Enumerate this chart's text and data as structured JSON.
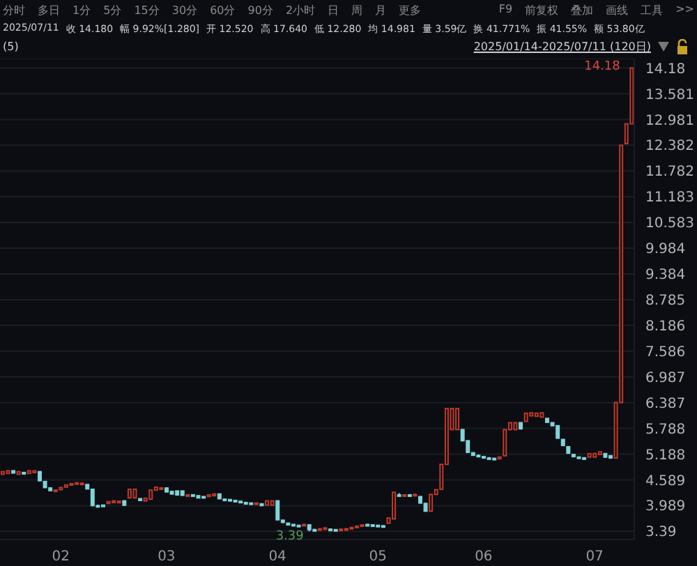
{
  "chart_data": {
    "type": "candlestick",
    "annotations": [
      "分时",
      "多日",
      "1分",
      "5分",
      "15分",
      "30分",
      "60分",
      "90分",
      "2小时",
      "日",
      "周",
      "月",
      "更多",
      "F9",
      "前复权",
      "叠加",
      "画线",
      "工具",
      ">>",
      "2025/07/11",
      "收 14.180",
      "幅 9.92%[1.280]",
      "开 12.520",
      "高 17.640",
      "低 12.280",
      "均 14.981",
      "量 3.59亿",
      "换 41.771%",
      "振 41.55%",
      "额 53.80亿",
      "(5)",
      "2025/01/14-2025/07/11 (120日)",
      "14.18",
      "3.39"
    ],
    "categories": [
      null,
      null,
      null,
      null,
      null,
      null,
      null,
      null,
      null,
      null,
      null,
      "02",
      null,
      null,
      null,
      null,
      null,
      null,
      null,
      null,
      null,
      null,
      null,
      null,
      null,
      null,
      null,
      null,
      null,
      null,
      null,
      "03",
      null,
      null,
      null,
      null,
      null,
      null,
      null,
      null,
      null,
      null,
      null,
      null,
      null,
      null,
      null,
      null,
      null,
      null,
      null,
      null,
      "04",
      null,
      null,
      null,
      null,
      null,
      null,
      null,
      null,
      null,
      null,
      null,
      null,
      null,
      null,
      null,
      null,
      null,
      null,
      "05",
      null,
      null,
      null,
      null,
      null,
      null,
      null,
      null,
      null,
      null,
      null,
      null,
      null,
      null,
      null,
      null,
      null,
      null,
      null,
      "06",
      null,
      null,
      null,
      null,
      null,
      null,
      null,
      null,
      null,
      null,
      null,
      null,
      null,
      null,
      null,
      null,
      null,
      null,
      null,
      null,
      "07",
      null,
      null,
      null,
      null,
      null,
      null,
      null
    ],
    "ohlc": [
      [
        4.72,
        4.78,
        4.72,
        4.78
      ],
      [
        4.74,
        4.8,
        4.74,
        4.8
      ],
      [
        4.8,
        4.8,
        4.74,
        4.75
      ],
      [
        4.72,
        4.78,
        4.72,
        4.78
      ],
      [
        4.76,
        4.76,
        4.72,
        4.73
      ],
      [
        4.74,
        4.8,
        4.74,
        4.8
      ],
      [
        4.76,
        4.8,
        4.76,
        4.8
      ],
      [
        4.78,
        4.78,
        4.56,
        4.57
      ],
      [
        4.55,
        4.55,
        4.4,
        4.41
      ],
      [
        4.4,
        4.4,
        4.33,
        4.34
      ],
      [
        4.34,
        4.36,
        4.33,
        4.35
      ],
      [
        4.36,
        4.41,
        4.36,
        4.41
      ],
      [
        4.42,
        4.47,
        4.42,
        4.47
      ],
      [
        4.47,
        4.5,
        4.47,
        4.5
      ],
      [
        4.5,
        4.52,
        4.5,
        4.52
      ],
      [
        4.51,
        4.52,
        4.5,
        4.51
      ],
      [
        4.48,
        4.48,
        4.38,
        4.38
      ],
      [
        4.37,
        4.37,
        3.98,
        3.99
      ],
      [
        3.99,
        4.01,
        3.97,
        3.98
      ],
      [
        4.0,
        4.01,
        3.97,
        3.98
      ],
      [
        4.04,
        4.08,
        4.04,
        4.08
      ],
      [
        4.06,
        4.1,
        4.06,
        4.1
      ],
      [
        4.08,
        4.1,
        4.08,
        4.09
      ],
      [
        4.1,
        4.1,
        3.98,
        4.0
      ],
      [
        4.17,
        4.37,
        4.17,
        4.37
      ],
      [
        4.17,
        4.37,
        4.17,
        4.37
      ],
      [
        4.15,
        4.15,
        4.1,
        4.11
      ],
      [
        4.1,
        4.16,
        4.1,
        4.16
      ],
      [
        4.14,
        4.35,
        4.14,
        4.35
      ],
      [
        4.35,
        4.42,
        4.35,
        4.42
      ],
      [
        4.38,
        4.42,
        4.38,
        4.4
      ],
      [
        4.4,
        4.4,
        4.3,
        4.31
      ],
      [
        4.32,
        4.33,
        4.25,
        4.26
      ],
      [
        4.33,
        4.33,
        4.22,
        4.24
      ],
      [
        4.33,
        4.33,
        4.22,
        4.23
      ],
      [
        4.22,
        4.25,
        4.2,
        4.24
      ],
      [
        4.24,
        4.25,
        4.2,
        4.21
      ],
      [
        4.22,
        4.22,
        4.16,
        4.17
      ],
      [
        4.2,
        4.2,
        4.16,
        4.17
      ],
      [
        4.2,
        4.24,
        4.2,
        4.24
      ],
      [
        4.22,
        4.26,
        4.22,
        4.26
      ],
      [
        4.26,
        4.26,
        4.14,
        4.15
      ],
      [
        4.14,
        4.14,
        4.12,
        4.13
      ],
      [
        4.13,
        4.13,
        4.1,
        4.11
      ],
      [
        4.11,
        4.11,
        4.08,
        4.09
      ],
      [
        4.09,
        4.09,
        4.05,
        4.06
      ],
      [
        4.06,
        4.08,
        4.04,
        4.05
      ],
      [
        4.05,
        4.06,
        4.02,
        4.03
      ],
      [
        4.02,
        4.06,
        4.02,
        4.05
      ],
      [
        4.03,
        4.03,
        3.98,
        3.99
      ],
      [
        4.0,
        4.1,
        4.0,
        4.1
      ],
      [
        4.0,
        4.1,
        4.0,
        4.1
      ],
      [
        4.1,
        4.1,
        3.65,
        3.66
      ],
      [
        3.65,
        3.65,
        3.58,
        3.6
      ],
      [
        3.58,
        3.58,
        3.53,
        3.54
      ],
      [
        3.55,
        3.56,
        3.52,
        3.53
      ],
      [
        3.53,
        3.54,
        3.5,
        3.51
      ],
      [
        3.52,
        3.56,
        3.52,
        3.55
      ],
      [
        3.54,
        3.54,
        3.39,
        3.43
      ],
      [
        3.43,
        3.45,
        3.41,
        3.42
      ],
      [
        3.42,
        3.45,
        3.42,
        3.45
      ],
      [
        3.45,
        3.48,
        3.45,
        3.47
      ],
      [
        3.44,
        3.46,
        3.42,
        3.43
      ],
      [
        3.43,
        3.44,
        3.41,
        3.42
      ],
      [
        3.42,
        3.45,
        3.42,
        3.44
      ],
      [
        3.44,
        3.46,
        3.43,
        3.45
      ],
      [
        3.45,
        3.48,
        3.45,
        3.48
      ],
      [
        3.48,
        3.52,
        3.48,
        3.51
      ],
      [
        3.51,
        3.55,
        3.51,
        3.54
      ],
      [
        3.55,
        3.56,
        3.53,
        3.54
      ],
      [
        3.54,
        3.55,
        3.52,
        3.53
      ],
      [
        3.53,
        3.54,
        3.51,
        3.52
      ],
      [
        3.52,
        3.53,
        3.5,
        3.51
      ],
      [
        3.58,
        3.7,
        3.58,
        3.7
      ],
      [
        3.68,
        4.3,
        3.68,
        4.3
      ],
      [
        4.24,
        4.28,
        4.2,
        4.22
      ],
      [
        4.22,
        4.25,
        4.2,
        4.24
      ],
      [
        4.24,
        4.25,
        4.2,
        4.21
      ],
      [
        4.22,
        4.26,
        4.2,
        4.25
      ],
      [
        4.2,
        4.2,
        4.04,
        4.05
      ],
      [
        4.04,
        4.04,
        3.85,
        3.86
      ],
      [
        3.86,
        4.25,
        3.85,
        4.25
      ],
      [
        4.25,
        4.36,
        4.25,
        4.36
      ],
      [
        4.37,
        4.95,
        4.37,
        4.95
      ],
      [
        4.95,
        6.25,
        4.95,
        6.25
      ],
      [
        5.76,
        6.25,
        5.76,
        6.25
      ],
      [
        5.76,
        6.25,
        5.76,
        6.25
      ],
      [
        5.76,
        5.76,
        5.5,
        5.5
      ],
      [
        5.5,
        5.5,
        5.22,
        5.23
      ],
      [
        5.22,
        5.23,
        5.15,
        5.16
      ],
      [
        5.16,
        5.18,
        5.12,
        5.13
      ],
      [
        5.13,
        5.14,
        5.09,
        5.1
      ],
      [
        5.1,
        5.12,
        5.08,
        5.09
      ],
      [
        5.09,
        5.1,
        5.07,
        5.08
      ],
      [
        5.08,
        5.12,
        5.08,
        5.12
      ],
      [
        5.15,
        5.76,
        5.15,
        5.76
      ],
      [
        5.76,
        5.92,
        5.76,
        5.92
      ],
      [
        5.76,
        5.92,
        5.76,
        5.92
      ],
      [
        5.92,
        5.92,
        5.76,
        5.78
      ],
      [
        5.95,
        6.14,
        5.95,
        6.14
      ],
      [
        6.08,
        6.15,
        6.08,
        6.15
      ],
      [
        6.07,
        6.15,
        6.07,
        6.14
      ],
      [
        6.05,
        6.15,
        6.05,
        6.15
      ],
      [
        6.02,
        6.02,
        5.92,
        5.93
      ],
      [
        5.92,
        5.92,
        5.84,
        5.85
      ],
      [
        5.85,
        5.85,
        5.55,
        5.56
      ],
      [
        5.53,
        5.53,
        5.38,
        5.39
      ],
      [
        5.36,
        5.36,
        5.2,
        5.21
      ],
      [
        5.18,
        5.18,
        5.12,
        5.13
      ],
      [
        5.12,
        5.13,
        5.08,
        5.09
      ],
      [
        5.1,
        5.12,
        5.08,
        5.09
      ],
      [
        5.12,
        5.2,
        5.12,
        5.2
      ],
      [
        5.12,
        5.22,
        5.12,
        5.2
      ],
      [
        5.18,
        5.25,
        5.18,
        5.24
      ],
      [
        5.2,
        5.2,
        5.1,
        5.12
      ],
      [
        5.15,
        5.15,
        5.08,
        5.1
      ],
      [
        5.1,
        6.39,
        5.1,
        6.39
      ],
      [
        6.39,
        12.38,
        6.39,
        12.38
      ],
      [
        12.42,
        12.88,
        12.42,
        12.88
      ],
      [
        12.88,
        14.18,
        12.88,
        14.18
      ]
    ],
    "colors": [
      "#c0392b",
      "#c0392b",
      "#7fd3d9",
      "#c0392b",
      "#7fd3d9",
      "#c0392b",
      "#c0392b",
      "#7fd3d9",
      "#7fd3d9",
      "#7fd3d9",
      "#c0392b",
      "#c0392b",
      "#c0392b",
      "#c0392b",
      "#c0392b",
      "#c0392b",
      "#7fd3d9",
      "#7fd3d9",
      "#7fd3d9",
      "#7fd3d9",
      "#c0392b",
      "#c0392b",
      "#c0392b",
      "#7fd3d9",
      "#c0392b",
      "#c0392b",
      "#7fd3d9",
      "#c0392b",
      "#c0392b",
      "#c0392b",
      "#c0392b",
      "#7fd3d9",
      "#7fd3d9",
      "#7fd3d9",
      "#7fd3d9",
      "#c0392b",
      "#7fd3d9",
      "#7fd3d9",
      "#7fd3d9",
      "#c0392b",
      "#c0392b",
      "#7fd3d9",
      "#7fd3d9",
      "#7fd3d9",
      "#7fd3d9",
      "#7fd3d9",
      "#7fd3d9",
      "#7fd3d9",
      "#c0392b",
      "#7fd3d9",
      "#c0392b",
      "#c0392b",
      "#7fd3d9",
      "#7fd3d9",
      "#7fd3d9",
      "#7fd3d9",
      "#7fd3d9",
      "#c0392b",
      "#7fd3d9",
      "#7fd3d9",
      "#c0392b",
      "#c0392b",
      "#7fd3d9",
      "#7fd3d9",
      "#c0392b",
      "#c0392b",
      "#c0392b",
      "#c0392b",
      "#c0392b",
      "#7fd3d9",
      "#7fd3d9",
      "#7fd3d9",
      "#7fd3d9",
      "#c0392b",
      "#c0392b",
      "#7fd3d9",
      "#c0392b",
      "#7fd3d9",
      "#c0392b",
      "#7fd3d9",
      "#7fd3d9",
      "#c0392b",
      "#c0392b",
      "#c0392b",
      "#c0392b",
      "#c0392b",
      "#c0392b",
      "#7fd3d9",
      "#7fd3d9",
      "#7fd3d9",
      "#7fd3d9",
      "#7fd3d9",
      "#7fd3d9",
      "#7fd3d9",
      "#c0392b",
      "#c0392b",
      "#c0392b",
      "#c0392b",
      "#7fd3d9",
      "#c0392b",
      "#c0392b",
      "#c0392b",
      "#c0392b",
      "#7fd3d9",
      "#7fd3d9",
      "#7fd3d9",
      "#7fd3d9",
      "#7fd3d9",
      "#7fd3d9",
      "#7fd3d9",
      "#7fd3d9",
      "#c0392b",
      "#c0392b",
      "#c0392b",
      "#7fd3d9",
      "#7fd3d9",
      "#c0392b",
      "#c0392b",
      "#c0392b",
      "#c0392b"
    ],
    "ylim": [
      3.2,
      14.4
    ],
    "yticks": [
      {
        "value": 3.39,
        "label": "3.39"
      },
      3.989,
      4.589,
      5.188,
      5.788,
      6.387,
      6.987,
      7.586,
      8.186,
      8.785,
      9.384,
      9.984,
      10.583,
      11.183,
      11.782,
      12.382,
      12.981,
      13.581,
      {
        "value": 14.18,
        "label": "14.18"
      }
    ],
    "grid": "y"
  }
}
